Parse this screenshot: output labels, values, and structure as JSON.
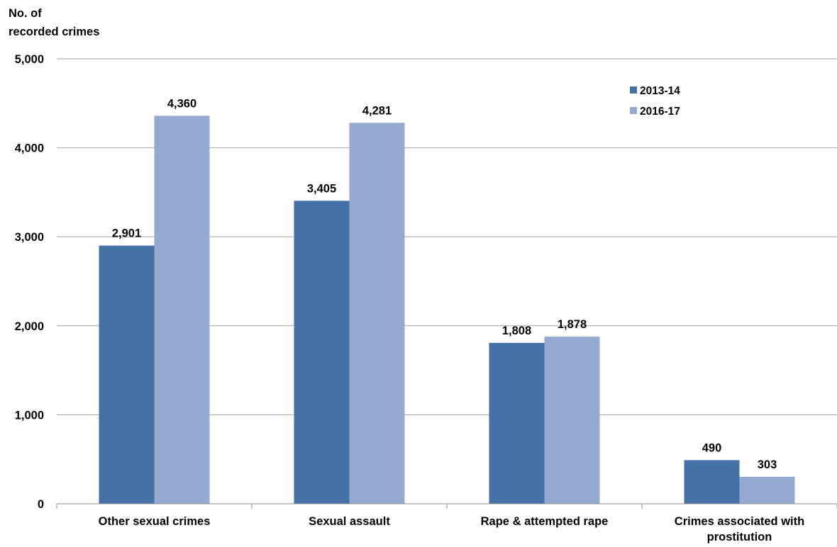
{
  "chart_data": {
    "type": "bar",
    "ylabel_lines": [
      "No. of",
      "recorded crimes"
    ],
    "xlabel": "",
    "categories": [
      [
        "Other sexual crimes"
      ],
      [
        "Sexual assault"
      ],
      [
        "Rape & attempted rape"
      ],
      [
        "Crimes associated with",
        "prostitution"
      ]
    ],
    "series": [
      {
        "name": "2013-14",
        "color": "#4472a6",
        "values": [
          2901,
          3405,
          1808,
          490
        ],
        "labels": [
          "2,901",
          "3,405",
          "1,808",
          "490"
        ]
      },
      {
        "name": "2016-17",
        "color": "#95aad1",
        "values": [
          4360,
          4281,
          1878,
          303
        ],
        "labels": [
          "4,360",
          "4,281",
          "1,878",
          "303"
        ]
      }
    ],
    "ylim": [
      0,
      5000
    ],
    "yticks": [
      0,
      1000,
      2000,
      3000,
      4000,
      5000
    ],
    "ytick_labels": [
      "0",
      "1,000",
      "2,000",
      "3,000",
      "4,000",
      "5,000"
    ],
    "grid": true,
    "legend_position": "top-right"
  }
}
